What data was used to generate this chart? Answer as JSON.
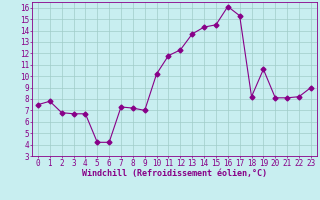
{
  "x": [
    0,
    1,
    2,
    3,
    4,
    5,
    6,
    7,
    8,
    9,
    10,
    11,
    12,
    13,
    14,
    15,
    16,
    17,
    18,
    19,
    20,
    21,
    22,
    23
  ],
  "y": [
    7.5,
    7.8,
    6.8,
    6.7,
    6.7,
    4.2,
    4.2,
    7.3,
    7.2,
    7.0,
    10.2,
    11.8,
    12.3,
    13.7,
    14.3,
    14.5,
    16.1,
    15.3,
    8.2,
    10.6,
    8.1,
    8.1,
    8.2,
    9.0
  ],
  "line_color": "#880088",
  "marker": "D",
  "marker_size": 2.5,
  "bg_color": "#c8eef0",
  "grid_color": "#a0ccc8",
  "xlabel": "Windchill (Refroidissement éolien,°C)",
  "xlim": [
    -0.5,
    23.5
  ],
  "ylim": [
    3,
    16.5
  ],
  "yticks": [
    3,
    4,
    5,
    6,
    7,
    8,
    9,
    10,
    11,
    12,
    13,
    14,
    15,
    16
  ],
  "xticks": [
    0,
    1,
    2,
    3,
    4,
    5,
    6,
    7,
    8,
    9,
    10,
    11,
    12,
    13,
    14,
    15,
    16,
    17,
    18,
    19,
    20,
    21,
    22,
    23
  ],
  "xlabel_color": "#880088",
  "tick_color": "#880088",
  "label_fontsize": 6.0,
  "tick_fontsize": 5.5
}
